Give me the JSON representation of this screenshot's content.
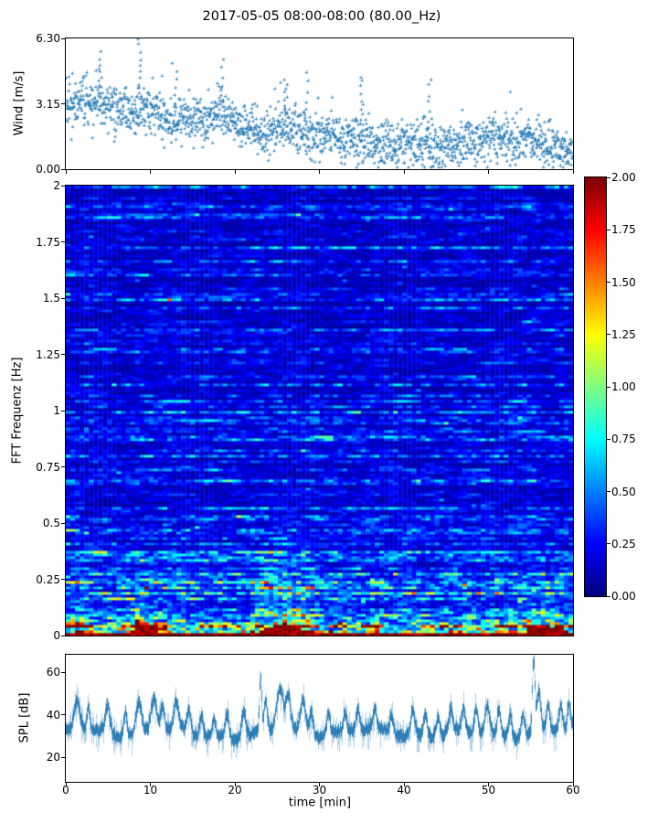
{
  "title": "2017-05-05 08:00-08:00 (80.00_Hz)",
  "xlabel": "time [min]",
  "xtick_labels": [
    "0",
    "10",
    "20",
    "30",
    "40",
    "50",
    "60"
  ],
  "xticks": [
    0,
    10,
    20,
    30,
    40,
    50,
    60
  ],
  "panels": {
    "wind": {
      "ylabel": "Wind [m/s]",
      "ytick_labels": [
        "6.30",
        "3.15",
        "0.00"
      ]
    },
    "spectrogram": {
      "ylabel": "FFT Frequenz [Hz]",
      "ytick_labels": [
        "2",
        "1.75",
        "1.5",
        "1.25",
        "1",
        "0.75",
        "0.5",
        "0.25",
        "0"
      ]
    },
    "spl": {
      "ylabel": "SPL [dB]",
      "ytick_labels": [
        "60",
        "40",
        "20"
      ]
    }
  },
  "colorbar": {
    "tick_labels": [
      "2.00",
      "1.75",
      "1.50",
      "1.25",
      "1.00",
      "0.75",
      "0.50",
      "0.25",
      "0.00"
    ],
    "ticks": [
      2.0,
      1.75,
      1.5,
      1.25,
      1.0,
      0.75,
      0.5,
      0.25,
      0.0
    ],
    "colormap": "jet",
    "lim": [
      0,
      2
    ]
  },
  "colors": {
    "series_blue": "#1f77b4",
    "axis": "#000000",
    "background": "#ffffff"
  },
  "chart_data": [
    {
      "id": "wind",
      "type": "scatter",
      "marker": "plus",
      "color": "#1f77b4",
      "ylabel": "Wind [m/s]",
      "xlim": [
        0,
        60
      ],
      "ylim": [
        0,
        6.3
      ],
      "yticks": [
        0,
        3.15,
        6.3
      ],
      "grid": false,
      "n_points": 1800,
      "seed": 7,
      "spread": 0.55,
      "trend": {
        "x": [
          0,
          2,
          5,
          8,
          10,
          12,
          15,
          18,
          20,
          22,
          24,
          26,
          28,
          30,
          32,
          34,
          36,
          38,
          40,
          42,
          44,
          46,
          48,
          50,
          52,
          54,
          56,
          58,
          60
        ],
        "mean": [
          3.1,
          3.4,
          3.0,
          2.8,
          2.9,
          2.4,
          2.3,
          2.6,
          2.3,
          2.0,
          1.8,
          2.1,
          1.8,
          1.5,
          1.6,
          1.5,
          1.3,
          1.2,
          1.2,
          1.1,
          1.2,
          1.1,
          1.3,
          1.4,
          1.3,
          1.5,
          1.2,
          1.0,
          0.9
        ]
      },
      "spikes": [
        {
          "t": 4.0,
          "v": 5.6
        },
        {
          "t": 8.7,
          "v": 6.3
        },
        {
          "t": 13.0,
          "v": 4.6
        },
        {
          "t": 18.5,
          "v": 5.2
        },
        {
          "t": 26.0,
          "v": 4.4
        },
        {
          "t": 28.5,
          "v": 4.6
        },
        {
          "t": 35.0,
          "v": 4.5
        },
        {
          "t": 43.0,
          "v": 4.4
        }
      ]
    },
    {
      "id": "spectrogram",
      "type": "heatmap",
      "colormap": "jet",
      "clim": [
        0,
        2
      ],
      "xlim": [
        0,
        60
      ],
      "ylim": [
        0,
        2
      ],
      "ylabel": "FFT Frequenz [Hz]",
      "yticks": [
        0,
        0.25,
        0.5,
        0.75,
        1,
        1.25,
        1.5,
        1.75,
        2
      ],
      "grid": {
        "cols": 110,
        "rows": 164
      },
      "seed": 11,
      "freq_profile": [
        {
          "f_max": 0.02,
          "mean": 2.0
        },
        {
          "f_max": 0.06,
          "mean": 1.1
        },
        {
          "f_max": 0.12,
          "mean": 0.7
        },
        {
          "f_max": 0.25,
          "mean": 0.45
        },
        {
          "f_max": 0.5,
          "mean": 0.33
        },
        {
          "f_max": 1.0,
          "mean": 0.27
        },
        {
          "f_max": 2.0,
          "mean": 0.23
        }
      ],
      "hotspots": [
        {
          "t": [
            0,
            3
          ],
          "f_max": 0.3,
          "gain": 1.5
        },
        {
          "t": [
            7,
            12
          ],
          "f_max": 0.35,
          "gain": 1.8
        },
        {
          "t": [
            22,
            30
          ],
          "f_max": 0.45,
          "gain": 2.0
        },
        {
          "t": [
            33,
            36
          ],
          "f_max": 0.2,
          "gain": 1.3
        },
        {
          "t": [
            46,
            49
          ],
          "f_max": 0.15,
          "gain": 1.3
        },
        {
          "t": [
            53,
            60
          ],
          "f_max": 0.3,
          "gain": 1.7
        }
      ],
      "saturated_patches": [
        {
          "t": [
            8,
            11
          ],
          "f_max": 0.07
        },
        {
          "t": [
            23,
            28
          ],
          "f_max": 0.06
        },
        {
          "t": [
            54.5,
            59.5
          ],
          "f_max": 0.05
        }
      ],
      "bottom_band_freq": 0.015,
      "bottom_band_value": 2.0
    },
    {
      "id": "spl",
      "type": "line",
      "color": "#1f77b4",
      "ylabel": "SPL [dB]",
      "xlim": [
        0,
        60
      ],
      "ylim": [
        8.4,
        68.2
      ],
      "yticks": [
        20,
        40,
        60
      ],
      "seed": 3,
      "baseline": 31.5,
      "noise_band": 4,
      "peaks": [
        {
          "t": 1.3,
          "v": 46,
          "w": 0.5
        },
        {
          "t": 2.6,
          "v": 43,
          "w": 0.3
        },
        {
          "t": 4.9,
          "v": 44,
          "w": 0.35
        },
        {
          "t": 7.0,
          "v": 43,
          "w": 0.3
        },
        {
          "t": 8.6,
          "v": 46,
          "w": 0.45
        },
        {
          "t": 10.4,
          "v": 48,
          "w": 0.5
        },
        {
          "t": 11.4,
          "v": 44,
          "w": 0.3
        },
        {
          "t": 13.0,
          "v": 45,
          "w": 0.4
        },
        {
          "t": 14.5,
          "v": 42,
          "w": 0.3
        },
        {
          "t": 16.0,
          "v": 42,
          "w": 0.3
        },
        {
          "t": 17.5,
          "v": 41,
          "w": 0.25
        },
        {
          "t": 19.0,
          "v": 43,
          "w": 0.3
        },
        {
          "t": 21.0,
          "v": 44,
          "w": 0.35
        },
        {
          "t": 23.0,
          "v": 58,
          "w": 0.18
        },
        {
          "t": 23.6,
          "v": 47,
          "w": 0.25
        },
        {
          "t": 25.3,
          "v": 53,
          "w": 0.6
        },
        {
          "t": 26.3,
          "v": 48,
          "w": 0.4
        },
        {
          "t": 28.0,
          "v": 47,
          "w": 0.45
        },
        {
          "t": 29.0,
          "v": 44,
          "w": 0.3
        },
        {
          "t": 31.0,
          "v": 42,
          "w": 0.3
        },
        {
          "t": 33.0,
          "v": 41,
          "w": 0.25
        },
        {
          "t": 34.5,
          "v": 43,
          "w": 0.3
        },
        {
          "t": 36.5,
          "v": 41,
          "w": 0.25
        },
        {
          "t": 38.5,
          "v": 41,
          "w": 0.3
        },
        {
          "t": 41.0,
          "v": 44,
          "w": 0.35
        },
        {
          "t": 42.5,
          "v": 42,
          "w": 0.3
        },
        {
          "t": 44.0,
          "v": 42,
          "w": 0.3
        },
        {
          "t": 45.5,
          "v": 43,
          "w": 0.3
        },
        {
          "t": 47.0,
          "v": 43,
          "w": 0.3
        },
        {
          "t": 48.5,
          "v": 44,
          "w": 0.35
        },
        {
          "t": 49.8,
          "v": 45,
          "w": 0.4
        },
        {
          "t": 51.2,
          "v": 44,
          "w": 0.3
        },
        {
          "t": 52.5,
          "v": 43,
          "w": 0.3
        },
        {
          "t": 54.0,
          "v": 43,
          "w": 0.3
        },
        {
          "t": 55.3,
          "v": 66,
          "w": 0.22
        },
        {
          "t": 55.9,
          "v": 51,
          "w": 0.3
        },
        {
          "t": 57.0,
          "v": 44,
          "w": 0.3
        },
        {
          "t": 58.5,
          "v": 44,
          "w": 0.3
        },
        {
          "t": 59.5,
          "v": 43,
          "w": 0.25
        }
      ]
    }
  ]
}
